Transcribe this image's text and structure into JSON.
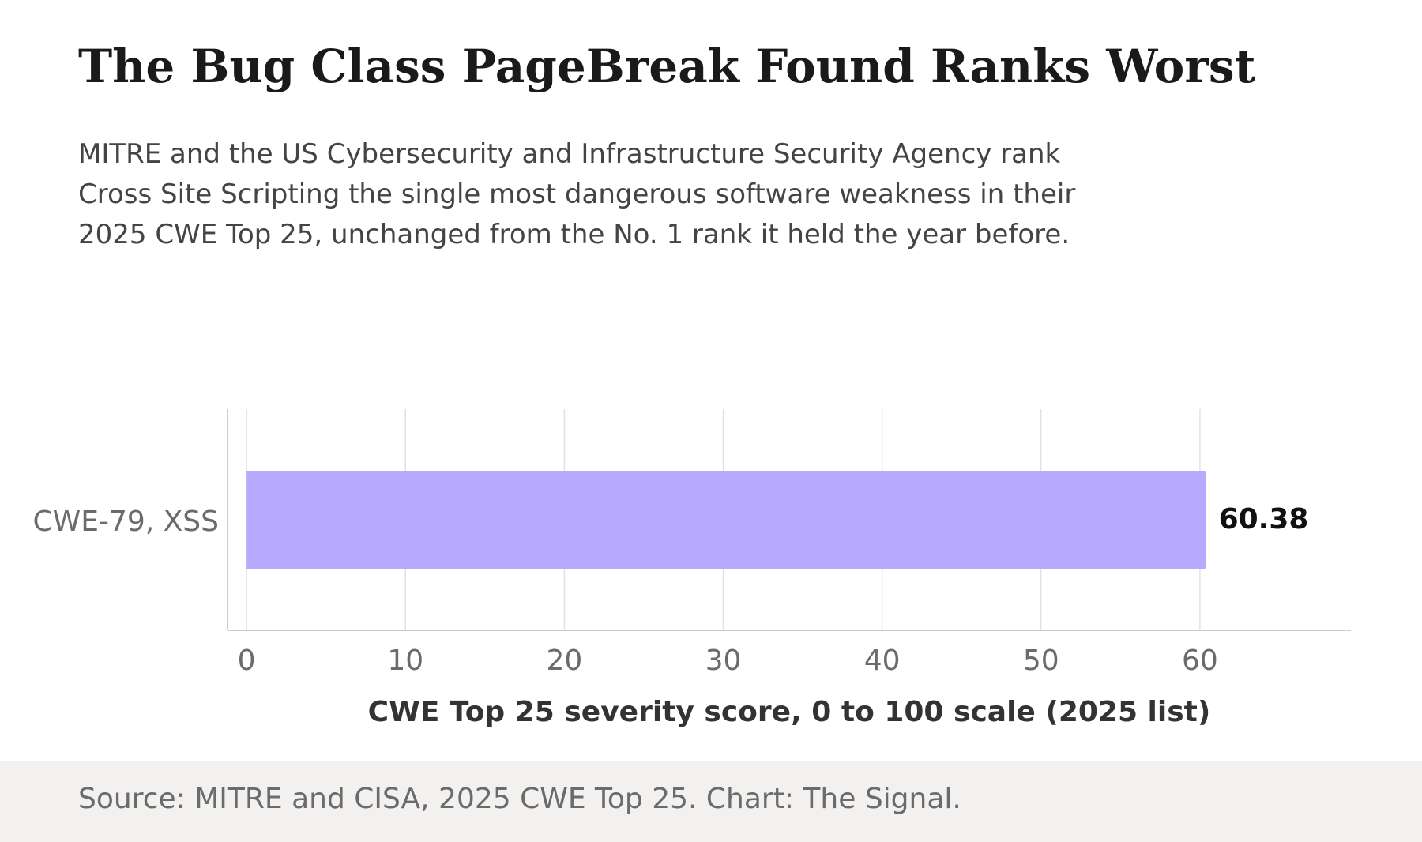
{
  "title": "The Bug Class PageBreak Found Ranks Worst",
  "subtitle": "MITRE and the US Cybersecurity and Infrastructure Security Agency rank Cross Site Scripting the single most dangerous software weakness in their 2025 CWE Top 25, unchanged from the No. 1 rank it held the year before.",
  "source": "Source: MITRE and CISA, 2025 CWE Top 25. Chart: The Signal.",
  "colors": {
    "bar": "#b8aaff",
    "grid": "#e2e2e2",
    "axis": "#cccccc",
    "tick_text": "#6b6b6b",
    "value_text": "#111111",
    "axis_title": "#333333",
    "footer_bg": "#f2f1f0"
  },
  "chart_data": {
    "type": "bar",
    "orientation": "horizontal",
    "categories": [
      "CWE-79, XSS"
    ],
    "values": [
      60.38
    ],
    "value_labels": [
      "60.38"
    ],
    "xlabel": "CWE Top 25 severity score, 0 to 100 scale (2025 list)",
    "ylabel": "",
    "xlim": [
      -1.2,
      69.5
    ],
    "xticks": [
      0,
      10,
      20,
      30,
      40,
      50,
      60
    ],
    "xtick_labels": [
      "0",
      "10",
      "20",
      "30",
      "40",
      "50",
      "60"
    ],
    "grid": true
  }
}
